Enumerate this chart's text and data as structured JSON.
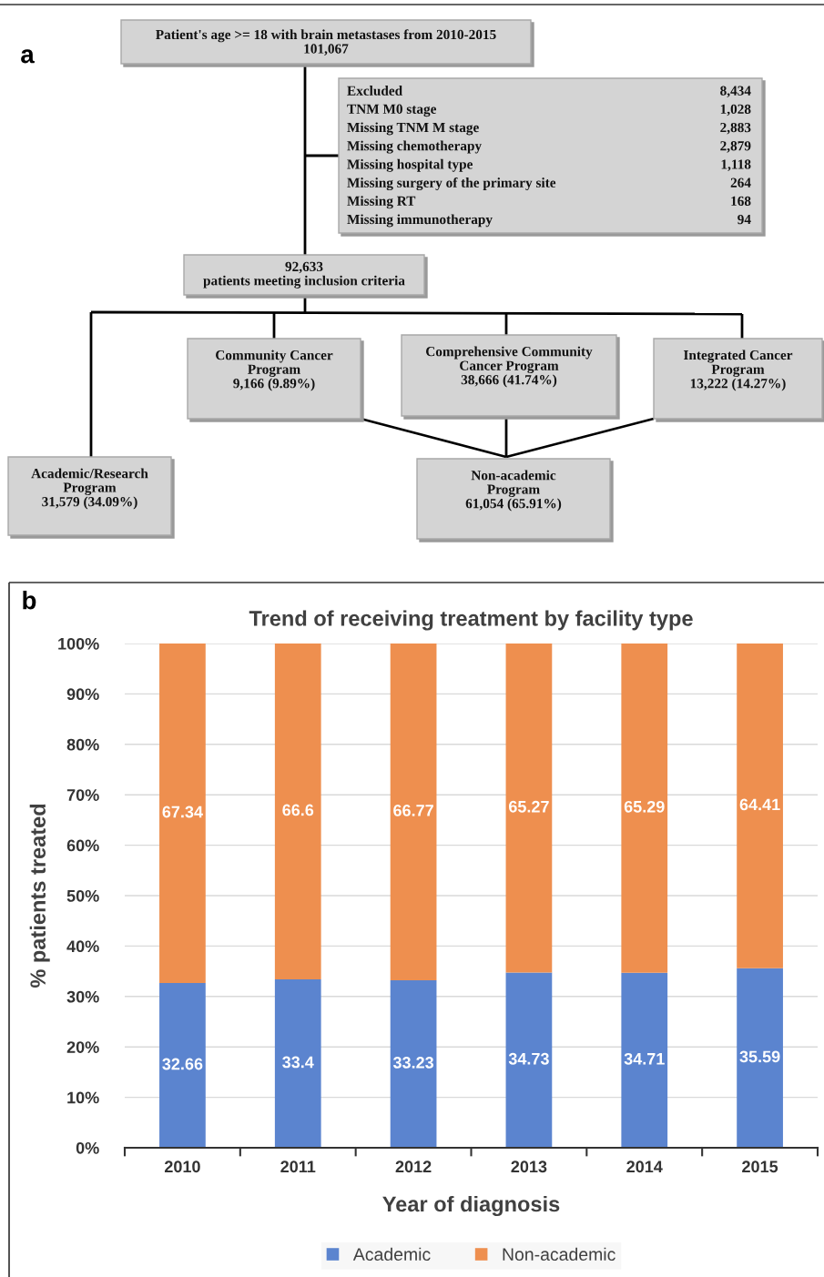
{
  "chart_data": [
    {
      "type": "other",
      "annotations": [
        "a",
        "Patient's age >= 18 with brain metastases from 2010-2015\n101,067",
        "Excluded",
        "8,434",
        "TNM M0 stage",
        "1,028",
        "Missing TNM M stage",
        "2,883",
        "Missing chemotherapy",
        "2,879",
        "Missing hospital type",
        "1,118",
        "Missing surgery of the primary site",
        "264",
        "Missing RT",
        "168",
        "Missing immunotherapy",
        "94",
        "92,633\npatients meeting inclusion criteria",
        "Community Cancer\nProgram\n9,166 (9.89%)",
        "Comprehensive Community\nCancer Program\n38,666 (41.74%)",
        "Integrated Cancer\nProgram\n13,222 (14.27%)",
        "Academic/Research\nProgram\n31,579 (34.09%)",
        "Non-academic\nProgram\n61,054 (65.91%)"
      ]
    },
    {
      "type": "bar",
      "stacked": true,
      "title": "Trend of receiving treatment by facility type",
      "xlabel": "Year of diagnosis",
      "ylabel": "% patients treated",
      "annotations": [
        "b"
      ],
      "categories": [
        "2010",
        "2011",
        "2012",
        "2013",
        "2014",
        "2015"
      ],
      "series": [
        {
          "name": "Academic",
          "color": "#5b84cf",
          "values": [
            32.66,
            33.4,
            33.23,
            34.73,
            34.71,
            35.59
          ]
        },
        {
          "name": "Non-academic",
          "color": "#ee8f4f",
          "values": [
            67.34,
            66.6,
            66.77,
            65.27,
            65.29,
            64.41
          ]
        }
      ],
      "ylim": [
        0,
        100
      ],
      "yticks": [
        {
          "value": 0,
          "label": "0%"
        },
        {
          "value": 10,
          "label": "10%"
        },
        {
          "value": 20,
          "label": "20%"
        },
        {
          "value": 30,
          "label": "30%"
        },
        {
          "value": 40,
          "label": "40%"
        },
        {
          "value": 50,
          "label": "50%"
        },
        {
          "value": 60,
          "label": "60%"
        },
        {
          "value": 70,
          "label": "70%"
        },
        {
          "value": 80,
          "label": "80%"
        },
        {
          "value": 90,
          "label": "90%"
        },
        {
          "value": 100,
          "label": "100%"
        }
      ],
      "data_labels": true,
      "grid": "y",
      "legend": "bottom"
    }
  ]
}
